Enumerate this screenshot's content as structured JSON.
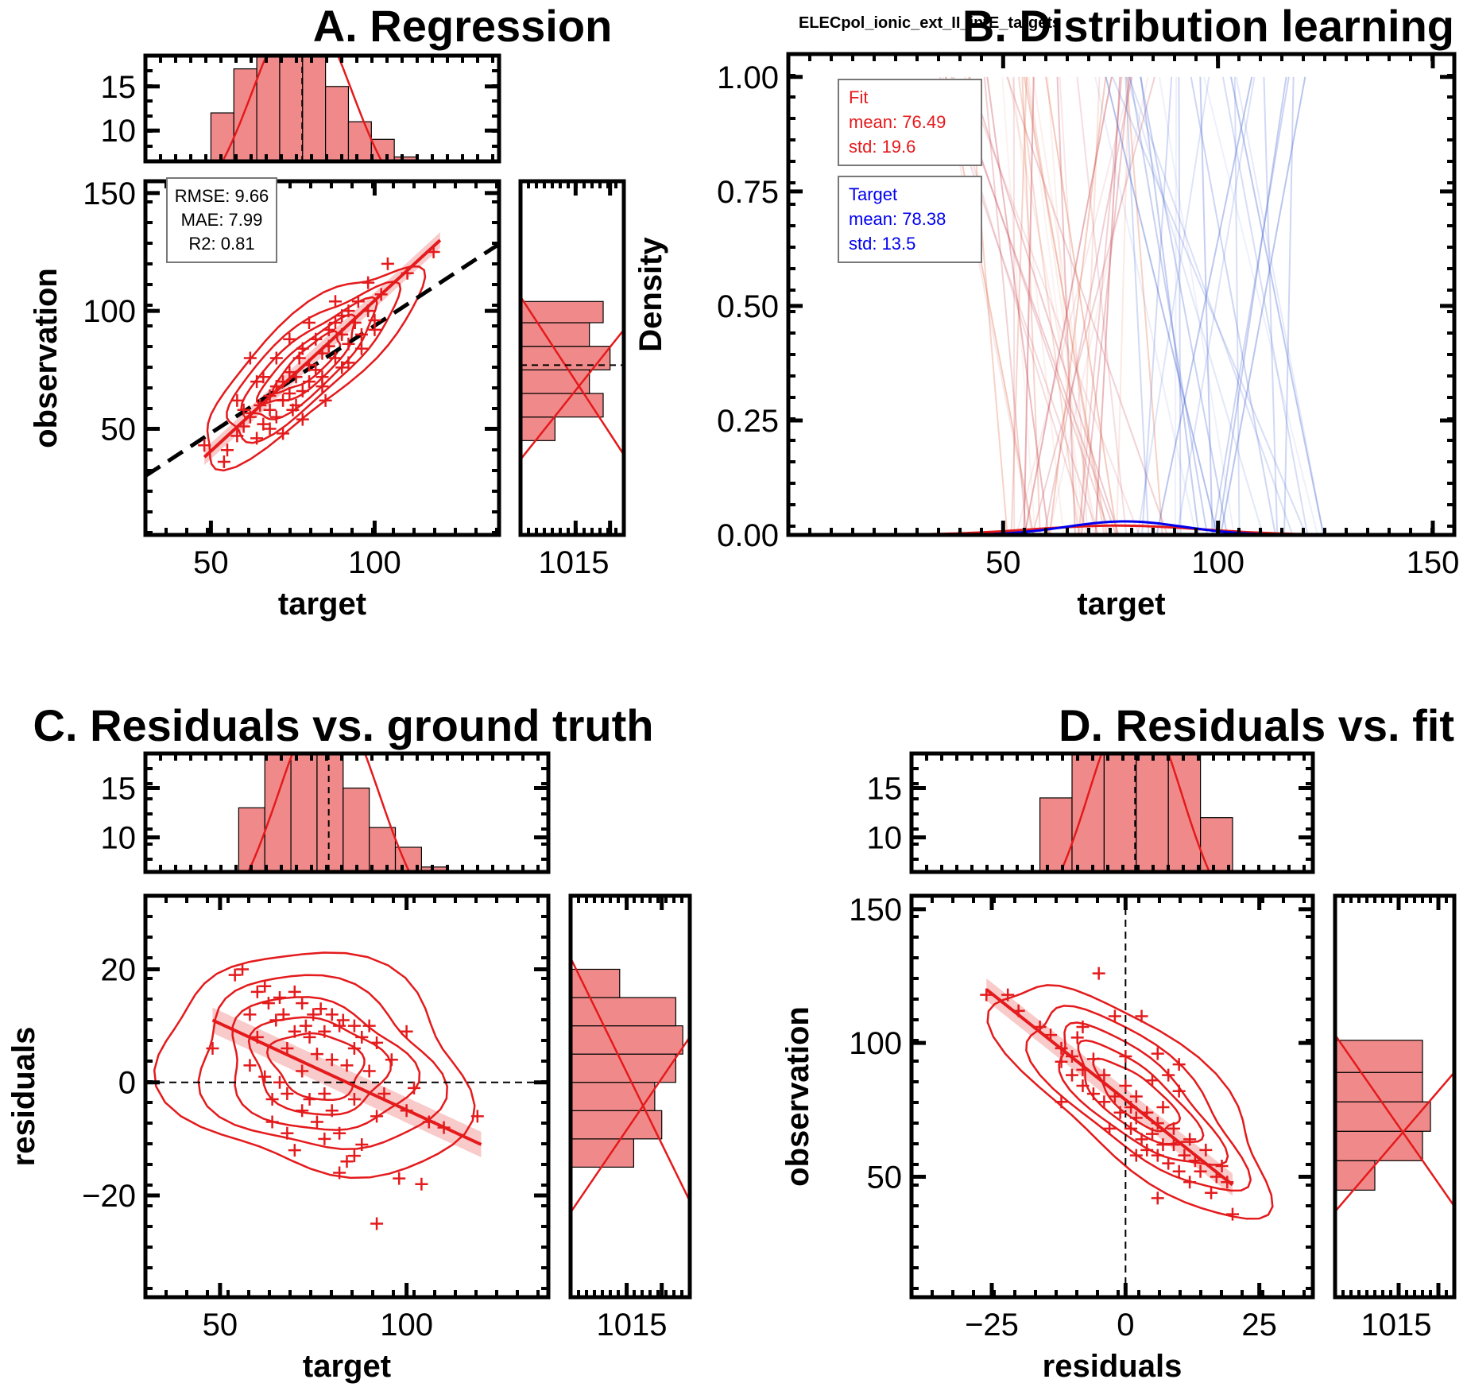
{
  "colors": {
    "fit": "#e41a1c",
    "target": "#0000ee",
    "hist_fill": "#f08a8a",
    "band": "#f6b3b3"
  },
  "chart_data": [
    {
      "panel": "A",
      "type": "scatter",
      "title": "A. Regression",
      "xlabel": "target",
      "ylabel": "observation",
      "xlim": [
        30,
        138
      ],
      "ylim": [
        5,
        155
      ],
      "xticks": [
        50,
        100
      ],
      "yticks": [
        50,
        100,
        150
      ],
      "stats": [
        "RMSE: 9.66",
        "MAE: 7.99",
        "R2: 0.81"
      ],
      "reference_line": "y = x",
      "fit_line": {
        "x": [
          48,
          120
        ],
        "y": [
          38,
          130
        ]
      },
      "points": [
        [
          48,
          43
        ],
        [
          54,
          36
        ],
        [
          55,
          41
        ],
        [
          58,
          47
        ],
        [
          60,
          51
        ],
        [
          62,
          55
        ],
        [
          64,
          46
        ],
        [
          65,
          60
        ],
        [
          66,
          52
        ],
        [
          68,
          58
        ],
        [
          68,
          64
        ],
        [
          70,
          55
        ],
        [
          70,
          68
        ],
        [
          72,
          62
        ],
        [
          72,
          70
        ],
        [
          74,
          65
        ],
        [
          74,
          74
        ],
        [
          75,
          58
        ],
        [
          76,
          72
        ],
        [
          77,
          80
        ],
        [
          78,
          66
        ],
        [
          78,
          84
        ],
        [
          80,
          70
        ],
        [
          80,
          77
        ],
        [
          82,
          75
        ],
        [
          82,
          88
        ],
        [
          84,
          72
        ],
        [
          84,
          82
        ],
        [
          86,
          85
        ],
        [
          86,
          92
        ],
        [
          88,
          80
        ],
        [
          88,
          95
        ],
        [
          90,
          90
        ],
        [
          90,
          98
        ],
        [
          92,
          86
        ],
        [
          92,
          100
        ],
        [
          94,
          95
        ],
        [
          95,
          104
        ],
        [
          96,
          90
        ],
        [
          98,
          112
        ],
        [
          100,
          96
        ],
        [
          102,
          107
        ],
        [
          104,
          120
        ],
        [
          110,
          116
        ],
        [
          118,
          125
        ],
        [
          62,
          80
        ],
        [
          66,
          72
        ],
        [
          70,
          80
        ],
        [
          74,
          88
        ],
        [
          80,
          95
        ],
        [
          58,
          62
        ],
        [
          64,
          70
        ],
        [
          76,
          60
        ],
        [
          84,
          68
        ],
        [
          90,
          76
        ],
        [
          60,
          58
        ],
        [
          68,
          50
        ],
        [
          72,
          48
        ],
        [
          78,
          54
        ],
        [
          85,
          62
        ],
        [
          92,
          78
        ],
        [
          96,
          84
        ],
        [
          98,
          100
        ],
        [
          100,
          92
        ],
        [
          88,
          104
        ]
      ],
      "top_hist": {
        "yticks": [
          10,
          15
        ],
        "ylim": [
          6.5,
          18.5
        ],
        "bins": [
          [
            50,
            57,
            12
          ],
          [
            57,
            64,
            17
          ],
          [
            64,
            71,
            21
          ],
          [
            71,
            78,
            19
          ],
          [
            78,
            85,
            20
          ],
          [
            85,
            92,
            15
          ],
          [
            92,
            99,
            11
          ],
          [
            99,
            106,
            9
          ],
          [
            106,
            113,
            7
          ]
        ]
      },
      "right_hist": {
        "xticks": [
          10,
          15
        ],
        "xticklabel": "1015",
        "xlim": [
          2,
          17
        ],
        "bins": [
          [
            45,
            55,
            7
          ],
          [
            55,
            65,
            14
          ],
          [
            65,
            75,
            12
          ],
          [
            75,
            85,
            15
          ],
          [
            85,
            95,
            12
          ],
          [
            95,
            104,
            14
          ]
        ]
      }
    },
    {
      "panel": "B",
      "type": "line",
      "title": "B. Distribution learning",
      "subtitle": "ELECpol_ionic_ext_II_intE_targets",
      "xlabel": "target",
      "ylabel": "Density",
      "xlim": [
        0,
        155
      ],
      "ylim": [
        0,
        1.05
      ],
      "xticks": [
        50,
        100,
        150
      ],
      "yticks": [
        "0.00",
        "0.25",
        "0.50",
        "0.75",
        "1.00"
      ],
      "legend": {
        "fit": [
          "Fit",
          "mean: 76.49",
          "std: 19.6"
        ],
        "target": [
          "Target",
          "mean: 78.38",
          "std: 13.5"
        ]
      },
      "series": [
        {
          "name": "Fit",
          "mean": 76.49,
          "std": 19.6
        },
        {
          "name": "Target",
          "mean": 78.38,
          "std": 13.5
        }
      ]
    },
    {
      "panel": "C",
      "type": "scatter",
      "title": "C. Residuals vs. ground truth",
      "xlabel": "target",
      "ylabel": "residuals",
      "xlim": [
        30,
        138
      ],
      "ylim": [
        -38,
        33
      ],
      "xticks": [
        50,
        100
      ],
      "yticks": [
        -20,
        0,
        20
      ],
      "fit_line": {
        "x": [
          48,
          120
        ],
        "y": [
          11,
          -11
        ]
      },
      "points": [
        [
          48,
          6
        ],
        [
          54,
          19
        ],
        [
          56,
          20
        ],
        [
          58,
          12
        ],
        [
          58,
          3
        ],
        [
          60,
          8
        ],
        [
          62,
          17
        ],
        [
          62,
          1
        ],
        [
          64,
          -3
        ],
        [
          65,
          11
        ],
        [
          66,
          15
        ],
        [
          66,
          0
        ],
        [
          68,
          6
        ],
        [
          68,
          -9
        ],
        [
          70,
          9
        ],
        [
          70,
          -12
        ],
        [
          72,
          14
        ],
        [
          72,
          2
        ],
        [
          74,
          -3
        ],
        [
          74,
          8
        ],
        [
          75,
          12
        ],
        [
          76,
          -7
        ],
        [
          76,
          5
        ],
        [
          78,
          9
        ],
        [
          78,
          -2
        ],
        [
          80,
          4
        ],
        [
          80,
          -5
        ],
        [
          82,
          10
        ],
        [
          82,
          -9
        ],
        [
          84,
          3
        ],
        [
          84,
          -14
        ],
        [
          86,
          6
        ],
        [
          86,
          -3
        ],
        [
          88,
          -11
        ],
        [
          88,
          8
        ],
        [
          90,
          2
        ],
        [
          92,
          -6
        ],
        [
          92,
          -25
        ],
        [
          94,
          -2
        ],
        [
          96,
          4
        ],
        [
          98,
          -17
        ],
        [
          100,
          -5
        ],
        [
          100,
          9
        ],
        [
          102,
          -1
        ],
        [
          104,
          -18
        ],
        [
          106,
          -7
        ],
        [
          110,
          -8
        ],
        [
          119,
          -6
        ],
        [
          60,
          16
        ],
        [
          63,
          14
        ],
        [
          67,
          12
        ],
        [
          70,
          16
        ],
        [
          73,
          10
        ],
        [
          77,
          13
        ],
        [
          80,
          12
        ],
        [
          83,
          11
        ],
        [
          86,
          10
        ],
        [
          90,
          10
        ],
        [
          92,
          7
        ],
        [
          64,
          -7
        ],
        [
          68,
          -2
        ],
        [
          72,
          -5
        ],
        [
          78,
          -10
        ],
        [
          82,
          -16
        ],
        [
          86,
          -13
        ]
      ],
      "top_hist": {
        "yticks": [
          10,
          15
        ],
        "ylim": [
          6.5,
          18.5
        ],
        "bins": [
          [
            55,
            62,
            13
          ],
          [
            62,
            69,
            19
          ],
          [
            69,
            76,
            21
          ],
          [
            76,
            83,
            20
          ],
          [
            83,
            90,
            15
          ],
          [
            90,
            97,
            11
          ],
          [
            97,
            104,
            9
          ],
          [
            104,
            111,
            7
          ]
        ]
      },
      "right_hist": {
        "xticks": [
          10,
          15
        ],
        "xticklabel": "1015",
        "xlim": [
          2,
          19
        ],
        "bins": [
          [
            -15,
            -10,
            11
          ],
          [
            -10,
            -5,
            15
          ],
          [
            -5,
            0,
            14
          ],
          [
            0,
            5,
            17
          ],
          [
            5,
            10,
            18
          ],
          [
            10,
            15,
            17
          ],
          [
            15,
            20,
            9
          ]
        ]
      }
    },
    {
      "panel": "D",
      "type": "scatter",
      "title": "D. Residuals vs. fit",
      "xlabel": "residuals",
      "ylabel": "observation",
      "xlim": [
        -40,
        35
      ],
      "ylim": [
        5,
        155
      ],
      "xticks": [
        -25,
        0,
        25
      ],
      "yticks": [
        50,
        100,
        150
      ],
      "fit_line": {
        "x": [
          -26,
          20
        ],
        "y": [
          120,
          47
        ]
      },
      "points": [
        [
          -26,
          118
        ],
        [
          -22,
          118
        ],
        [
          -20,
          112
        ],
        [
          -16,
          106
        ],
        [
          -14,
          103
        ],
        [
          -12,
          98
        ],
        [
          -12,
          93
        ],
        [
          -10,
          95
        ],
        [
          -10,
          88
        ],
        [
          -9,
          102
        ],
        [
          -8,
          90
        ],
        [
          -8,
          84
        ],
        [
          -6,
          94
        ],
        [
          -6,
          81
        ],
        [
          -5,
          126
        ],
        [
          -4,
          88
        ],
        [
          -4,
          78
        ],
        [
          -2,
          110
        ],
        [
          -2,
          80
        ],
        [
          -1,
          74
        ],
        [
          0,
          84
        ],
        [
          0,
          95
        ],
        [
          1,
          76
        ],
        [
          1,
          68
        ],
        [
          2,
          80
        ],
        [
          2,
          72
        ],
        [
          3,
          110
        ],
        [
          3,
          64
        ],
        [
          4,
          74
        ],
        [
          4,
          60
        ],
        [
          5,
          86
        ],
        [
          5,
          66
        ],
        [
          6,
          70
        ],
        [
          6,
          58
        ],
        [
          7,
          62
        ],
        [
          7,
          76
        ],
        [
          8,
          88
        ],
        [
          8,
          55
        ],
        [
          9,
          62
        ],
        [
          9,
          68
        ],
        [
          10,
          82
        ],
        [
          10,
          52
        ],
        [
          11,
          58
        ],
        [
          12,
          64
        ],
        [
          12,
          48
        ],
        [
          13,
          56
        ],
        [
          14,
          52
        ],
        [
          15,
          60
        ],
        [
          16,
          44
        ],
        [
          17,
          50
        ],
        [
          18,
          54
        ],
        [
          19,
          48
        ],
        [
          20,
          36
        ],
        [
          -8,
          106
        ],
        [
          -12,
          78
        ],
        [
          2,
          58
        ],
        [
          6,
          96
        ],
        [
          -3,
          68
        ],
        [
          10,
          92
        ],
        [
          6,
          42
        ]
      ],
      "top_hist": {
        "yticks": [
          10,
          15
        ],
        "ylim": [
          6.5,
          18.5
        ],
        "bins": [
          [
            -16,
            -10,
            14
          ],
          [
            -10,
            -4,
            20
          ],
          [
            -4,
            2,
            21
          ],
          [
            2,
            8,
            20
          ],
          [
            8,
            14,
            21
          ],
          [
            14,
            20,
            12
          ]
        ]
      },
      "right_hist": {
        "xticks": [
          10,
          15
        ],
        "xticklabel": "1015",
        "xlim": [
          2,
          17
        ],
        "bins": [
          [
            45,
            56,
            7
          ],
          [
            56,
            67,
            13
          ],
          [
            67,
            78,
            14
          ],
          [
            78,
            89,
            13
          ],
          [
            89,
            101,
            13
          ]
        ]
      }
    }
  ]
}
